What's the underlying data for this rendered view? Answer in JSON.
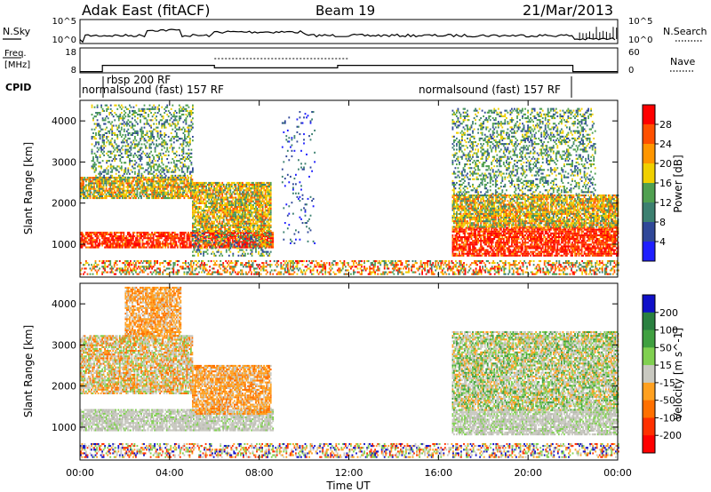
{
  "header": {
    "station": "Adak East (fitACF)",
    "beam": "Beam 19",
    "date": "21/Mar/2013"
  },
  "noise_panel": {
    "left_label": "N.Sky",
    "right_label": "N.Search",
    "left_ticks": [
      "10^5",
      "10^0"
    ],
    "right_ticks": [
      "10^5",
      "10^0"
    ]
  },
  "freq_panel": {
    "left_label_line1": "Freq.",
    "left_label_line2": "[MHz]",
    "right_label": "Nave",
    "left_ticks": [
      "18",
      "8"
    ],
    "right_ticks": [
      "60",
      "0"
    ],
    "freq_steps": [
      {
        "start_h": 0.0,
        "end_h": 1.0,
        "mhz": 8.5
      },
      {
        "start_h": 1.0,
        "end_h": 6.0,
        "mhz": 11.0
      },
      {
        "start_h": 6.0,
        "end_h": 11.5,
        "mhz": 10.0
      },
      {
        "start_h": 11.5,
        "end_h": 22.0,
        "mhz": 11.0
      },
      {
        "start_h": 22.0,
        "end_h": 24.0,
        "mhz": 8.5
      }
    ]
  },
  "cpid": {
    "label": "CPID",
    "segments": [
      {
        "text": "normalsound (fast) 157 RF",
        "start_h": 0.0
      },
      {
        "text": "rbsp 200 RF",
        "start_h": 1.0
      },
      {
        "text": "normalsound (fast) 157 RF",
        "start_h": 17.0
      }
    ]
  },
  "x_axis": {
    "label": "Time UT",
    "ticks": [
      "00:00",
      "04:00",
      "08:00",
      "12:00",
      "16:00",
      "20:00",
      "00:00"
    ]
  },
  "chart_data": [
    {
      "type": "heatmap",
      "panel": "power",
      "ylabel": "Slant Range [km]",
      "xlim_hours": [
        0,
        24
      ],
      "ylim_km": [
        200,
        4500
      ],
      "y_ticks": [
        1000,
        2000,
        3000,
        4000
      ],
      "colorbar": {
        "label": "Power [dB]",
        "ticks": [
          "28",
          "24",
          "20",
          "16",
          "12",
          "8",
          "4"
        ],
        "colors": [
          "#ff0000",
          "#ff5000",
          "#ff9600",
          "#f0d000",
          "#50a050",
          "#3c8070",
          "#304898",
          "#1f1fff"
        ]
      },
      "regions": [
        {
          "t0": 0.0,
          "t1": 8.6,
          "r0": 900,
          "r1": 1300,
          "level": "strong"
        },
        {
          "t0": 0.0,
          "t1": 5.0,
          "r0": 2100,
          "r1": 2600,
          "level": "medium"
        },
        {
          "t0": 0.5,
          "t1": 5.0,
          "r0": 2600,
          "r1": 4400,
          "level": "weak"
        },
        {
          "t0": 5.0,
          "t1": 8.5,
          "r0": 1300,
          "r1": 2500,
          "level": "medium"
        },
        {
          "t0": 5.0,
          "t1": 8.5,
          "r0": 700,
          "r1": 1300,
          "level": "weak"
        },
        {
          "t0": 9.0,
          "t1": 10.5,
          "r0": 1000,
          "r1": 4200,
          "level": "sparse"
        },
        {
          "t0": 16.6,
          "t1": 24.0,
          "r0": 700,
          "r1": 1400,
          "level": "strong"
        },
        {
          "t0": 16.6,
          "t1": 24.0,
          "r0": 1400,
          "r1": 2200,
          "level": "medium"
        },
        {
          "t0": 16.6,
          "t1": 23.0,
          "r0": 2200,
          "r1": 4300,
          "level": "weak"
        },
        {
          "t0": 0.0,
          "t1": 24.0,
          "r0": 250,
          "r1": 600,
          "level": "ground"
        }
      ]
    },
    {
      "type": "heatmap",
      "panel": "velocity",
      "ylabel": "Slant Range [km]",
      "xlim_hours": [
        0,
        24
      ],
      "ylim_km": [
        200,
        4500
      ],
      "y_ticks": [
        1000,
        2000,
        3000,
        4000
      ],
      "colorbar": {
        "label": "Velocity [m s^-1]",
        "ticks": [
          "200",
          "100",
          "50",
          "15",
          "-15",
          "-50",
          "-100",
          "-200"
        ],
        "colors": [
          "#1010c8",
          "#2a8040",
          "#40a040",
          "#80d050",
          "#c8c8c0",
          "#ffa020",
          "#ff7000",
          "#ff3000",
          "#ff0000"
        ]
      },
      "regions": [
        {
          "t0": 0.0,
          "t1": 8.6,
          "r0": 900,
          "r1": 1400,
          "level": "gray"
        },
        {
          "t0": 0.0,
          "t1": 5.0,
          "r0": 1800,
          "r1": 3200,
          "level": "mixed-orange"
        },
        {
          "t0": 2.0,
          "t1": 4.5,
          "r0": 3200,
          "r1": 4400,
          "level": "orange"
        },
        {
          "t0": 5.0,
          "t1": 8.5,
          "r0": 1300,
          "r1": 2500,
          "level": "orange"
        },
        {
          "t0": 16.6,
          "t1": 24.0,
          "r0": 800,
          "r1": 1400,
          "level": "gray"
        },
        {
          "t0": 16.6,
          "t1": 24.0,
          "r0": 1400,
          "r1": 3300,
          "level": "mixed-gray"
        },
        {
          "t0": 0.0,
          "t1": 24.0,
          "r0": 250,
          "r1": 600,
          "level": "ground"
        }
      ]
    }
  ]
}
